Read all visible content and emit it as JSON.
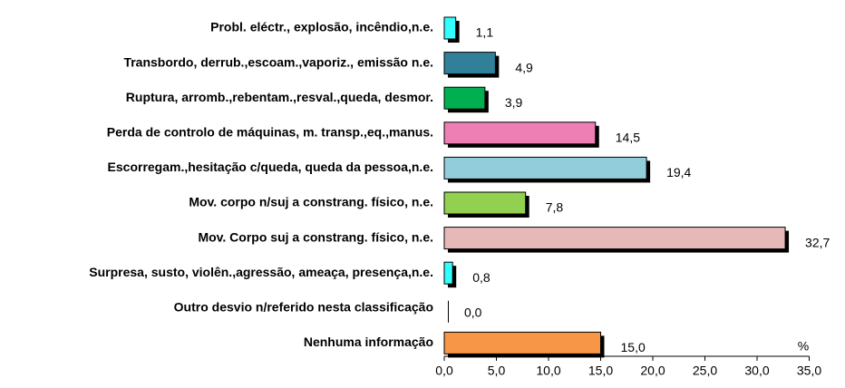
{
  "chart_data": {
    "type": "barh",
    "categories": [
      "Probl. eléctr., explosão, incêndio,n.e.",
      "Transbordo, derrub.,escoam.,vaporiz., emissão n.e.",
      "Ruptura, arromb.,rebentam.,resval.,queda, desmor.",
      "Perda de controlo de máquinas, m. transp.,eq.,manus.",
      "Escorregam.,hesitação c/queda, queda da pessoa,n.e.",
      "Mov. corpo n/suj a constrang. físico, n.e.",
      "Mov. Corpo suj a constrang. físico, n.e.",
      "Surpresa, susto, violên.,agressão, ameaça, presença,n.e.",
      "Outro desvio n/referido nesta classificação",
      "Nenhuma informação"
    ],
    "values": [
      1.1,
      4.9,
      3.9,
      14.5,
      19.4,
      7.8,
      32.7,
      0.8,
      0.0,
      15.0
    ],
    "value_labels": [
      "1,1",
      "4,9",
      "3,9",
      "14,5",
      "19,4",
      "7,8",
      "32,7",
      "0,8",
      "0,0",
      "15,0"
    ],
    "colors": [
      "#33ffff",
      "#31809a",
      "#00b050",
      "#ee7fb4",
      "#92cddc",
      "#92d050",
      "#e6b9b8",
      "#33ffff",
      "#ffffff",
      "#f79646"
    ],
    "xlim": [
      0,
      35
    ],
    "xticks": [
      {
        "value": 0,
        "label": "0,0"
      },
      {
        "value": 5,
        "label": "5,0"
      },
      {
        "value": 10,
        "label": "10,0"
      },
      {
        "value": 15,
        "label": "15,0"
      },
      {
        "value": 20,
        "label": "20,0"
      },
      {
        "value": 25,
        "label": "25,0"
      },
      {
        "value": 30,
        "label": "30,0"
      },
      {
        "value": 35,
        "label": "35,0"
      }
    ],
    "annotation": "%"
  }
}
